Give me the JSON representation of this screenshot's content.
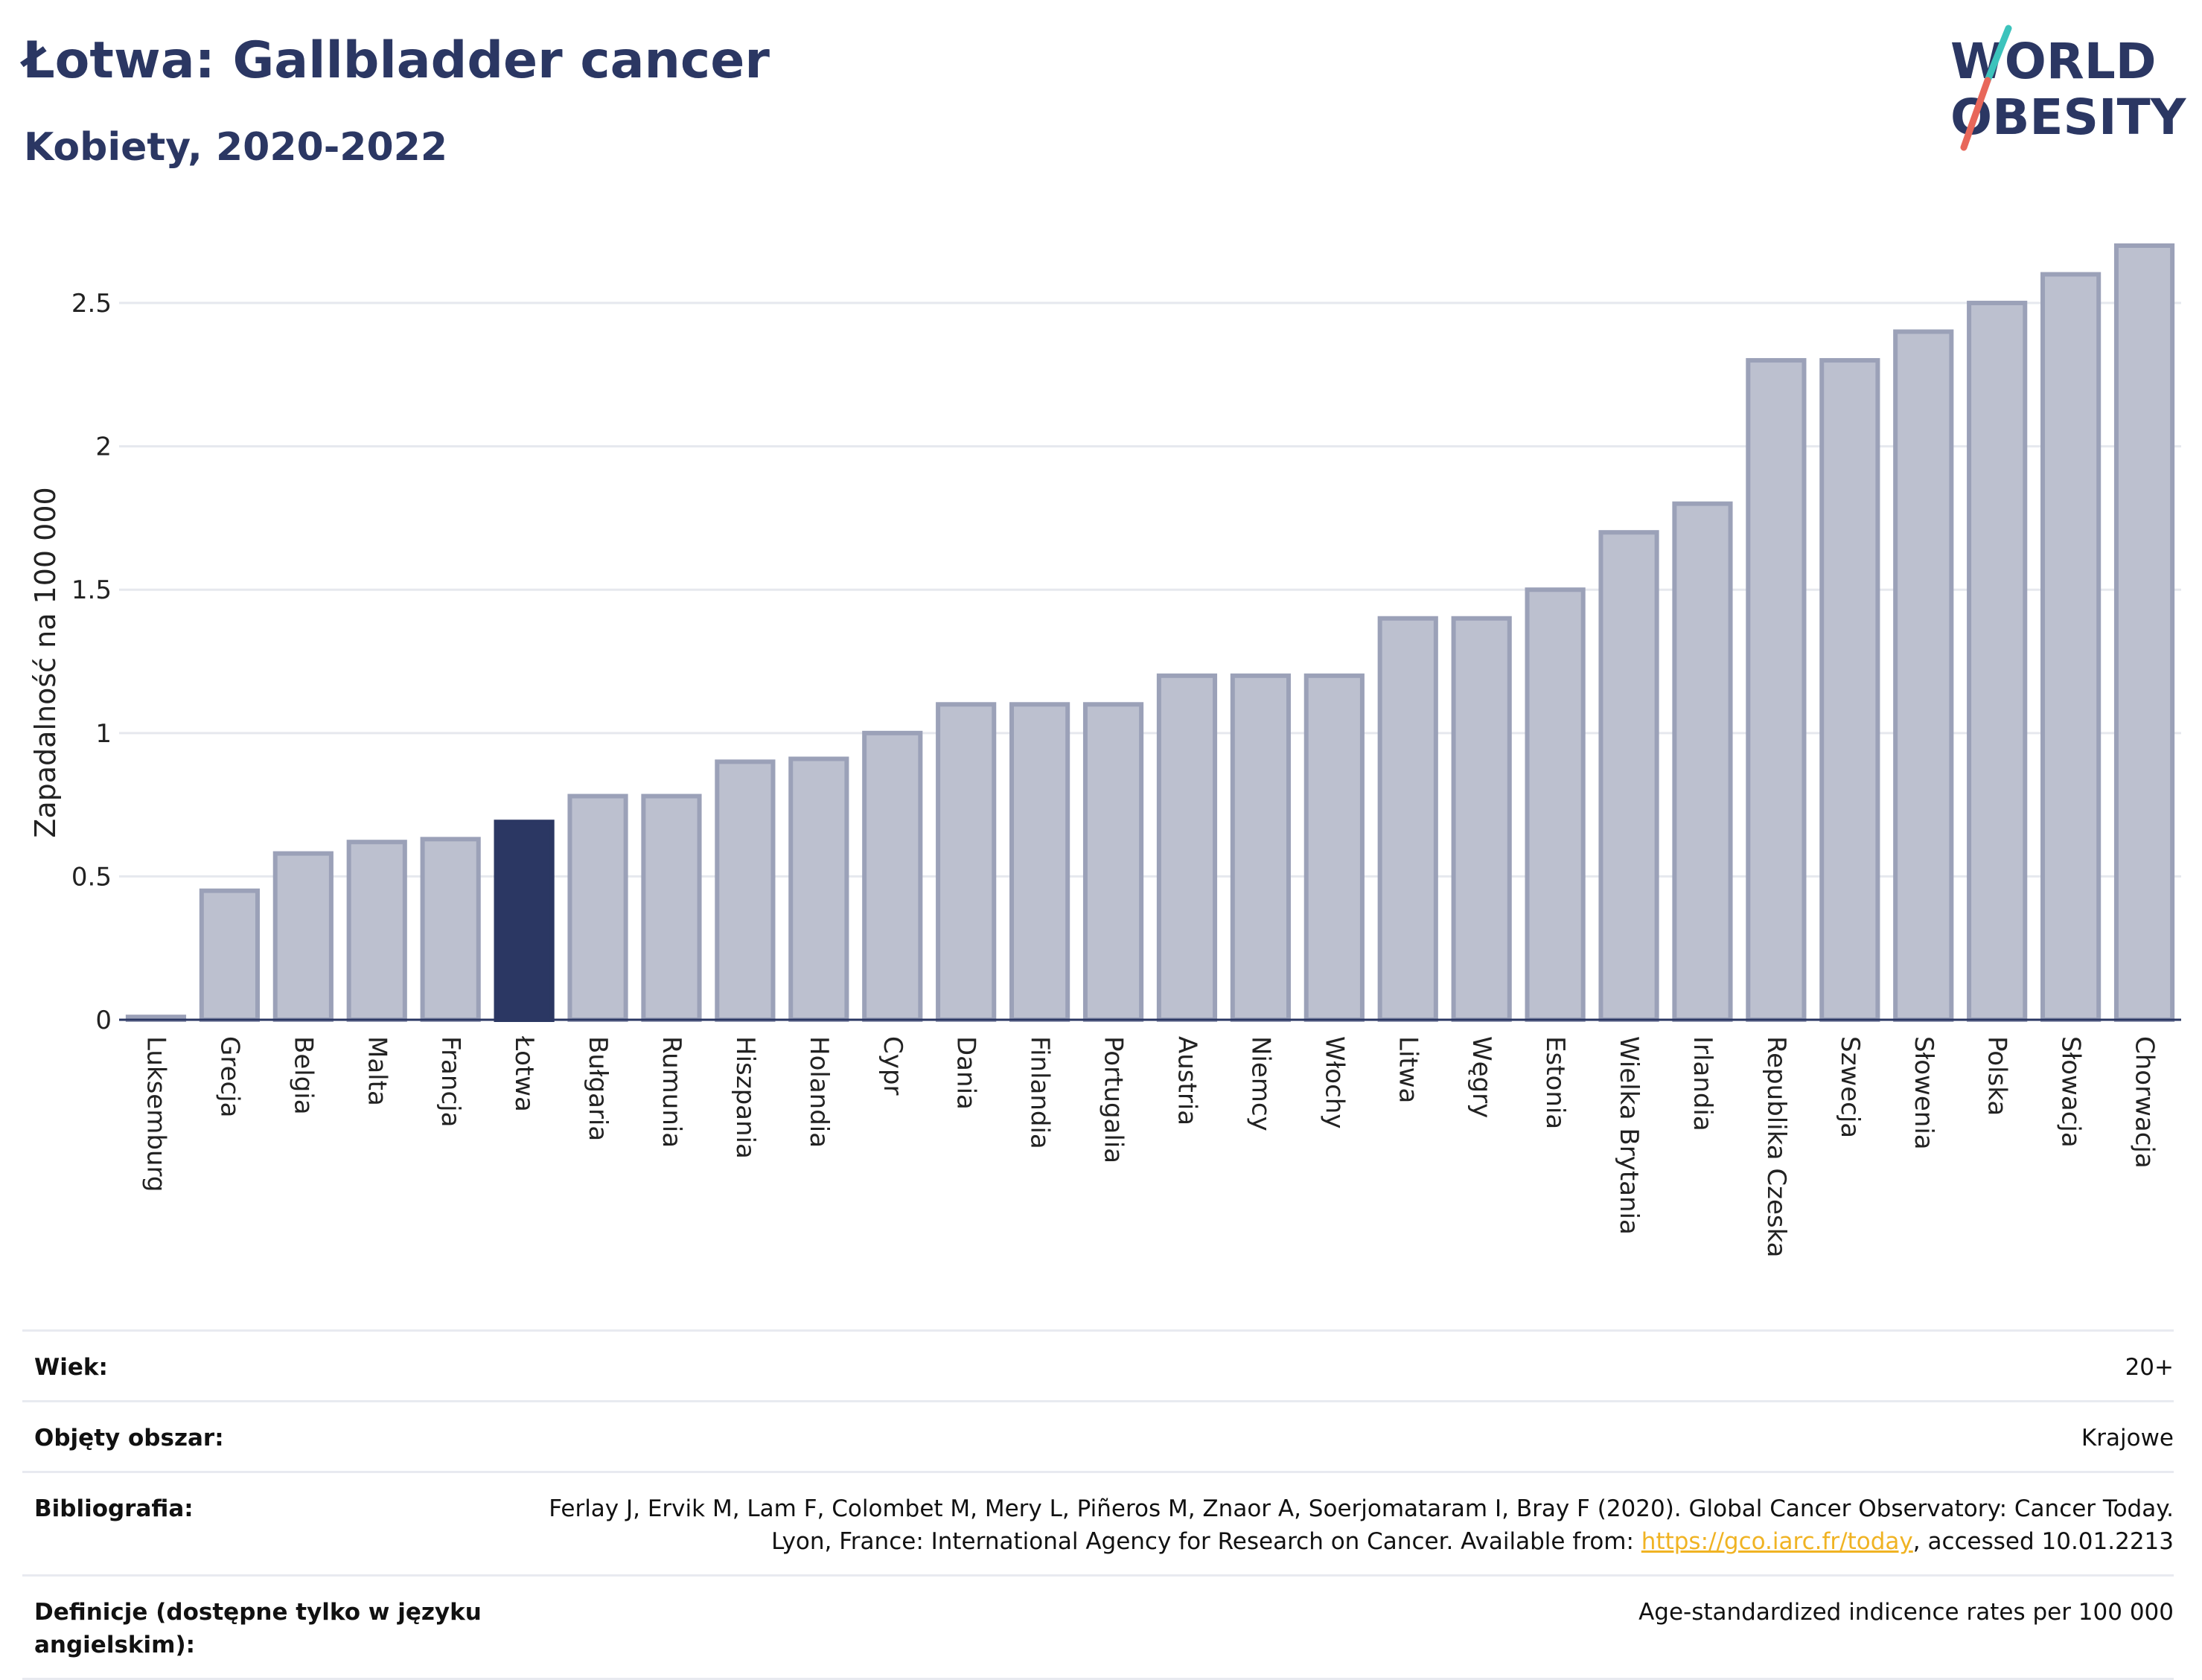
{
  "header": {
    "title": "Łotwa: Gallbladder cancer",
    "subtitle": "Kobiety, 2020-2022"
  },
  "logo": {
    "line1": "WORLD",
    "line2": "OBESITY"
  },
  "colors": {
    "highlight_bar": "#2b3763",
    "bar_fill": "#bcc0cf",
    "bar_stroke": "#9ba1b8",
    "title": "#2b3763",
    "link": "#f0b323",
    "logo_teal": "#3cc3bc",
    "logo_coral": "#e8675a"
  },
  "chart_data": {
    "type": "bar",
    "ylabel": "Zapadalność na 100 000",
    "ylim": [
      0,
      2.7
    ],
    "yticks": [
      0,
      0.5,
      1,
      1.5,
      2,
      2.5
    ],
    "grid": true,
    "highlight": "Łotwa",
    "categories": [
      "Luksemburg",
      "Grecja",
      "Belgia",
      "Malta",
      "Francja",
      "Łotwa",
      "Bułgaria",
      "Rumunia",
      "Hiszpania",
      "Holandia",
      "Cypr",
      "Dania",
      "Finlandia",
      "Portugalia",
      "Austria",
      "Niemcy",
      "Włochy",
      "Litwa",
      "Węgry",
      "Estonia",
      "Wielka Brytania",
      "Irlandia",
      "Republika Czeska",
      "Szwecja",
      "Słowenia",
      "Polska",
      "Słowacja",
      "Chorwacja"
    ],
    "values": [
      0.01,
      0.45,
      0.58,
      0.62,
      0.63,
      0.69,
      0.78,
      0.78,
      0.9,
      0.91,
      1.0,
      1.1,
      1.1,
      1.1,
      1.2,
      1.2,
      1.2,
      1.4,
      1.4,
      1.5,
      1.7,
      1.8,
      2.3,
      2.3,
      2.4,
      2.5,
      2.6,
      2.7
    ]
  },
  "info": [
    {
      "label": "Wiek:",
      "value": "20+"
    },
    {
      "label": "Objęty obszar:",
      "value": "Krajowe"
    },
    {
      "label": "Bibliografia:",
      "value_pre": "Ferlay J, Ervik M, Lam F, Colombet M, Mery L, Piñeros M, Znaor A, Soerjomataram I, Bray F (2020). Global Cancer Observatory: Cancer Today. Lyon, France: International Agency for Research on Cancer. Available from: ",
      "link": "https://gco.iarc.fr/today",
      "value_post": ", accessed 10.01.2213"
    },
    {
      "label": "Definicje (dostępne tylko w języku angielskim):",
      "value": "Age-standardized indicence rates per 100 000"
    }
  ]
}
